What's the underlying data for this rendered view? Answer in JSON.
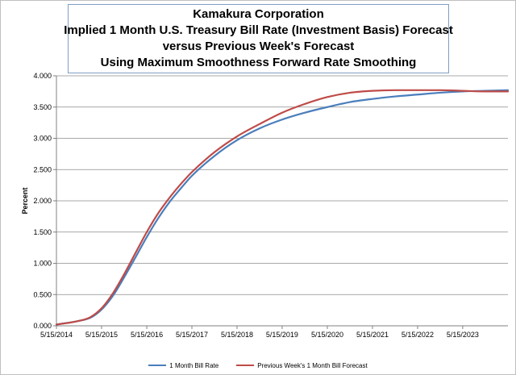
{
  "chart_data": {
    "type": "line",
    "title_lines": [
      "Kamakura Corporation",
      "Implied 1 Month U.S. Treasury Bill Rate (Investment Basis) Forecast",
      "versus  Previous Week's Forecast",
      "Using Maximum Smoothness Forward Rate Smoothing"
    ],
    "ylabel": "Percent",
    "xlabel": "",
    "ylim": [
      0,
      4
    ],
    "yticks": [
      "0.000",
      "0.500",
      "1.000",
      "1.500",
      "2.000",
      "2.500",
      "3.000",
      "3.500",
      "4.000"
    ],
    "xlim": [
      "2014-05-15",
      "2024-05-15"
    ],
    "xticks": [
      "5/15/2014",
      "5/15/2015",
      "5/15/2016",
      "5/15/2017",
      "5/15/2018",
      "5/15/2019",
      "5/15/2020",
      "5/15/2021",
      "5/15/2022",
      "5/15/2023"
    ],
    "grid": "horizontal",
    "legend_position": "bottom",
    "x": [
      "2014-05-15",
      "2014-11-15",
      "2015-02-15",
      "2015-05-15",
      "2015-08-15",
      "2015-11-15",
      "2016-02-15",
      "2016-05-15",
      "2016-08-15",
      "2016-11-15",
      "2017-02-15",
      "2017-05-15",
      "2017-11-15",
      "2018-05-15",
      "2018-11-15",
      "2019-05-15",
      "2019-11-15",
      "2020-05-15",
      "2020-11-15",
      "2021-05-15",
      "2021-11-15",
      "2022-05-15",
      "2022-11-15",
      "2023-05-15",
      "2023-11-15",
      "2024-05-15"
    ],
    "series": [
      {
        "name": "1 Month Bill Rate",
        "color": "#4a7ebb",
        "values": [
          0.02,
          0.08,
          0.13,
          0.26,
          0.48,
          0.78,
          1.1,
          1.42,
          1.72,
          1.98,
          2.2,
          2.4,
          2.72,
          2.97,
          3.16,
          3.3,
          3.41,
          3.5,
          3.58,
          3.63,
          3.67,
          3.7,
          3.73,
          3.75,
          3.76,
          3.77
        ]
      },
      {
        "name": "Previous Week's 1 Month Bill Forecast",
        "color": "#be4b48",
        "values": [
          0.02,
          0.08,
          0.14,
          0.28,
          0.52,
          0.83,
          1.17,
          1.5,
          1.8,
          2.05,
          2.27,
          2.46,
          2.78,
          3.03,
          3.23,
          3.41,
          3.55,
          3.66,
          3.73,
          3.76,
          3.77,
          3.77,
          3.77,
          3.76,
          3.75,
          3.75
        ]
      }
    ]
  }
}
